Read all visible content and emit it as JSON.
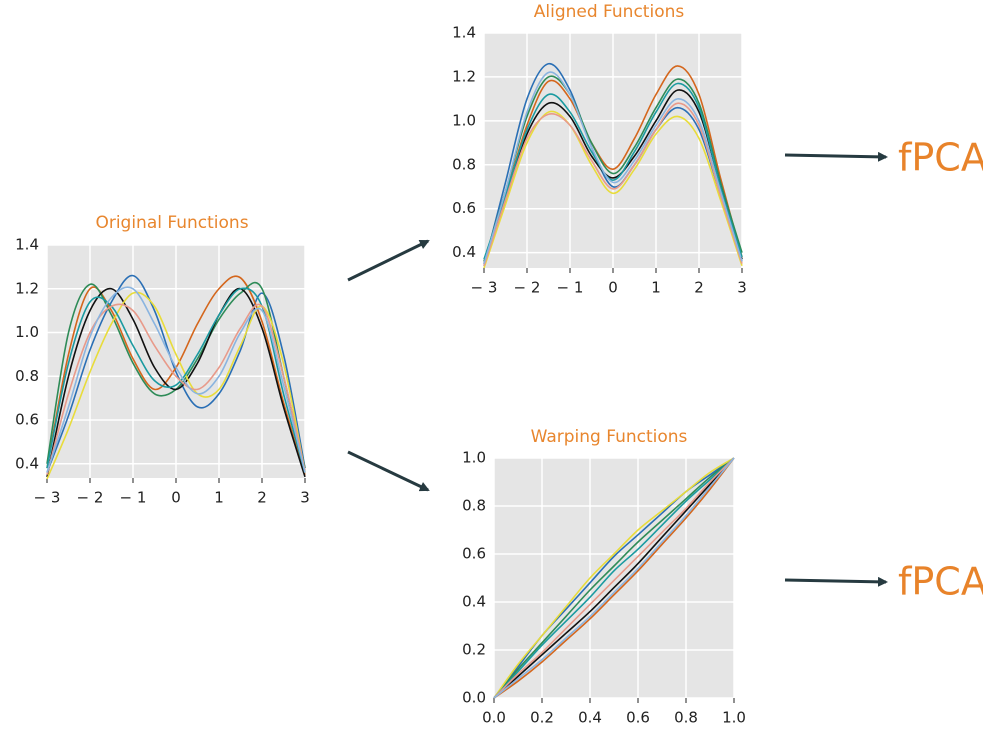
{
  "chart_data": [
    {
      "type": "line",
      "title": "Original Functions",
      "x": [
        -3,
        -2.5,
        -2,
        -1.5,
        -1,
        -0.5,
        0,
        0.5,
        1,
        1.5,
        2,
        2.5,
        3
      ],
      "xlim": [
        -3,
        3
      ],
      "ylim": [
        0.335,
        1.4
      ],
      "xticks": [
        {
          "value": -3,
          "label": "− 3"
        },
        {
          "value": -2,
          "label": "− 2"
        },
        {
          "value": -1,
          "label": "− 1"
        },
        0,
        1,
        2,
        3
      ],
      "yticks": [
        0.4,
        0.6,
        0.8,
        {
          "value": 1,
          "label": "1.0"
        },
        1.2,
        1.4
      ],
      "grid": true,
      "series": [
        {
          "color": "#2a6fb5",
          "values": [
            0.36,
            0.62,
            0.92,
            1.14,
            1.26,
            1.1,
            0.82,
            0.66,
            0.72,
            0.92,
            1.18,
            0.9,
            0.38
          ]
        },
        {
          "color": "#d4661c",
          "values": [
            0.38,
            0.9,
            1.2,
            1.1,
            0.88,
            0.74,
            0.84,
            1.04,
            1.2,
            1.25,
            1.05,
            0.68,
            0.35
          ]
        },
        {
          "color": "#2e8b57",
          "values": [
            0.4,
            1.0,
            1.22,
            1.08,
            0.86,
            0.72,
            0.74,
            0.88,
            1.06,
            1.18,
            1.2,
            0.8,
            0.38
          ]
        },
        {
          "color": "#111111",
          "values": [
            0.34,
            0.8,
            1.1,
            1.2,
            1.06,
            0.84,
            0.74,
            0.86,
            1.08,
            1.2,
            1.02,
            0.66,
            0.34
          ]
        },
        {
          "color": "#e8dc3a",
          "values": [
            0.33,
            0.56,
            0.82,
            1.04,
            1.18,
            1.12,
            0.9,
            0.72,
            0.74,
            0.94,
            1.12,
            0.86,
            0.36
          ]
        },
        {
          "color": "#1a9aa0",
          "values": [
            0.38,
            0.86,
            1.14,
            1.12,
            0.94,
            0.78,
            0.76,
            0.9,
            1.08,
            1.2,
            1.12,
            0.72,
            0.36
          ]
        },
        {
          "color": "#e89a8a",
          "values": [
            0.35,
            0.72,
            1.0,
            1.12,
            1.1,
            0.94,
            0.8,
            0.74,
            0.84,
            1.02,
            1.12,
            0.8,
            0.37
          ]
        },
        {
          "color": "#8ab4e0",
          "values": [
            0.36,
            0.66,
            0.98,
            1.16,
            1.2,
            1.04,
            0.84,
            0.72,
            0.8,
            1.0,
            1.1,
            0.76,
            0.36
          ]
        }
      ]
    },
    {
      "type": "line",
      "title": "Aligned Functions",
      "annotation": "fPCA",
      "x": [
        -3,
        -2.5,
        -2,
        -1.5,
        -1,
        -0.5,
        0,
        0.5,
        1,
        1.5,
        2,
        2.5,
        3
      ],
      "xlim": [
        -3,
        3
      ],
      "ylim": [
        0.33,
        1.4
      ],
      "xticks": [
        {
          "value": -3,
          "label": "− 3"
        },
        {
          "value": -2,
          "label": "− 2"
        },
        {
          "value": -1,
          "label": "− 1"
        },
        0,
        1,
        2,
        3
      ],
      "yticks": [
        0.4,
        0.6,
        0.8,
        {
          "value": 1,
          "label": "1.0"
        },
        1.2,
        1.4
      ],
      "grid": true,
      "series": [
        {
          "color": "#2a6fb5",
          "values": [
            0.34,
            0.72,
            1.1,
            1.26,
            1.14,
            0.88,
            0.7,
            0.8,
            0.96,
            1.06,
            0.96,
            0.66,
            0.36
          ]
        },
        {
          "color": "#d4661c",
          "values": [
            0.35,
            0.66,
            0.98,
            1.18,
            1.1,
            0.9,
            0.78,
            0.92,
            1.12,
            1.25,
            1.12,
            0.74,
            0.38
          ]
        },
        {
          "color": "#2e8b57",
          "values": [
            0.36,
            0.68,
            1.02,
            1.2,
            1.12,
            0.9,
            0.76,
            0.88,
            1.06,
            1.19,
            1.08,
            0.72,
            0.4
          ]
        },
        {
          "color": "#111111",
          "values": [
            0.35,
            0.64,
            0.94,
            1.08,
            1.02,
            0.84,
            0.74,
            0.84,
            1.0,
            1.14,
            1.04,
            0.7,
            0.37
          ]
        },
        {
          "color": "#e8dc3a",
          "values": [
            0.33,
            0.62,
            0.9,
            1.04,
            0.98,
            0.8,
            0.67,
            0.78,
            0.94,
            1.02,
            0.92,
            0.64,
            0.34
          ]
        },
        {
          "color": "#1a9aa0",
          "values": [
            0.37,
            0.66,
            0.96,
            1.12,
            1.04,
            0.86,
            0.73,
            0.86,
            1.04,
            1.17,
            1.06,
            0.7,
            0.38
          ]
        },
        {
          "color": "#e89a8a",
          "values": [
            0.34,
            0.64,
            0.92,
            1.03,
            0.98,
            0.82,
            0.69,
            0.8,
            0.96,
            1.08,
            0.98,
            0.66,
            0.35
          ]
        },
        {
          "color": "#8ab4e0",
          "values": [
            0.35,
            0.68,
            1.04,
            1.22,
            1.12,
            0.88,
            0.72,
            0.82,
            0.98,
            1.1,
            1.0,
            0.68,
            0.36
          ]
        }
      ]
    },
    {
      "type": "line",
      "title": "Warping Functions",
      "annotation": "fPCA",
      "x": [
        0,
        0.1,
        0.2,
        0.3,
        0.4,
        0.5,
        0.6,
        0.7,
        0.8,
        0.9,
        1
      ],
      "xlim": [
        0,
        1
      ],
      "ylim": [
        0,
        1
      ],
      "xticks": [
        {
          "value": 0,
          "label": "0.0"
        },
        0.2,
        0.4,
        0.6,
        0.8,
        {
          "value": 1,
          "label": "1.0"
        }
      ],
      "yticks": [
        {
          "value": 0,
          "label": "0.0"
        },
        0.2,
        0.4,
        0.6,
        0.8,
        {
          "value": 1,
          "label": "1.0"
        }
      ],
      "grid": true,
      "series": [
        {
          "color": "#2a6fb5",
          "values": [
            0,
            0.13,
            0.26,
            0.37,
            0.48,
            0.59,
            0.68,
            0.77,
            0.86,
            0.93,
            1
          ]
        },
        {
          "color": "#d4661c",
          "values": [
            0,
            0.07,
            0.15,
            0.24,
            0.33,
            0.43,
            0.53,
            0.64,
            0.75,
            0.87,
            1
          ]
        },
        {
          "color": "#2e8b57",
          "values": [
            0,
            0.12,
            0.23,
            0.34,
            0.45,
            0.55,
            0.65,
            0.74,
            0.83,
            0.92,
            1
          ]
        },
        {
          "color": "#111111",
          "values": [
            0,
            0.09,
            0.18,
            0.27,
            0.36,
            0.46,
            0.56,
            0.67,
            0.78,
            0.89,
            1
          ]
        },
        {
          "color": "#e8dc3a",
          "values": [
            0,
            0.14,
            0.26,
            0.38,
            0.5,
            0.6,
            0.7,
            0.78,
            0.86,
            0.94,
            1
          ]
        },
        {
          "color": "#1a9aa0",
          "values": [
            0,
            0.11,
            0.22,
            0.32,
            0.42,
            0.53,
            0.62,
            0.72,
            0.82,
            0.91,
            1
          ]
        },
        {
          "color": "#e89a8a",
          "values": [
            0,
            0.1,
            0.19,
            0.29,
            0.39,
            0.49,
            0.59,
            0.69,
            0.79,
            0.9,
            1
          ]
        },
        {
          "color": "#8ab4e0",
          "values": [
            0,
            0.08,
            0.16,
            0.25,
            0.34,
            0.44,
            0.54,
            0.65,
            0.76,
            0.88,
            1
          ]
        }
      ]
    }
  ]
}
